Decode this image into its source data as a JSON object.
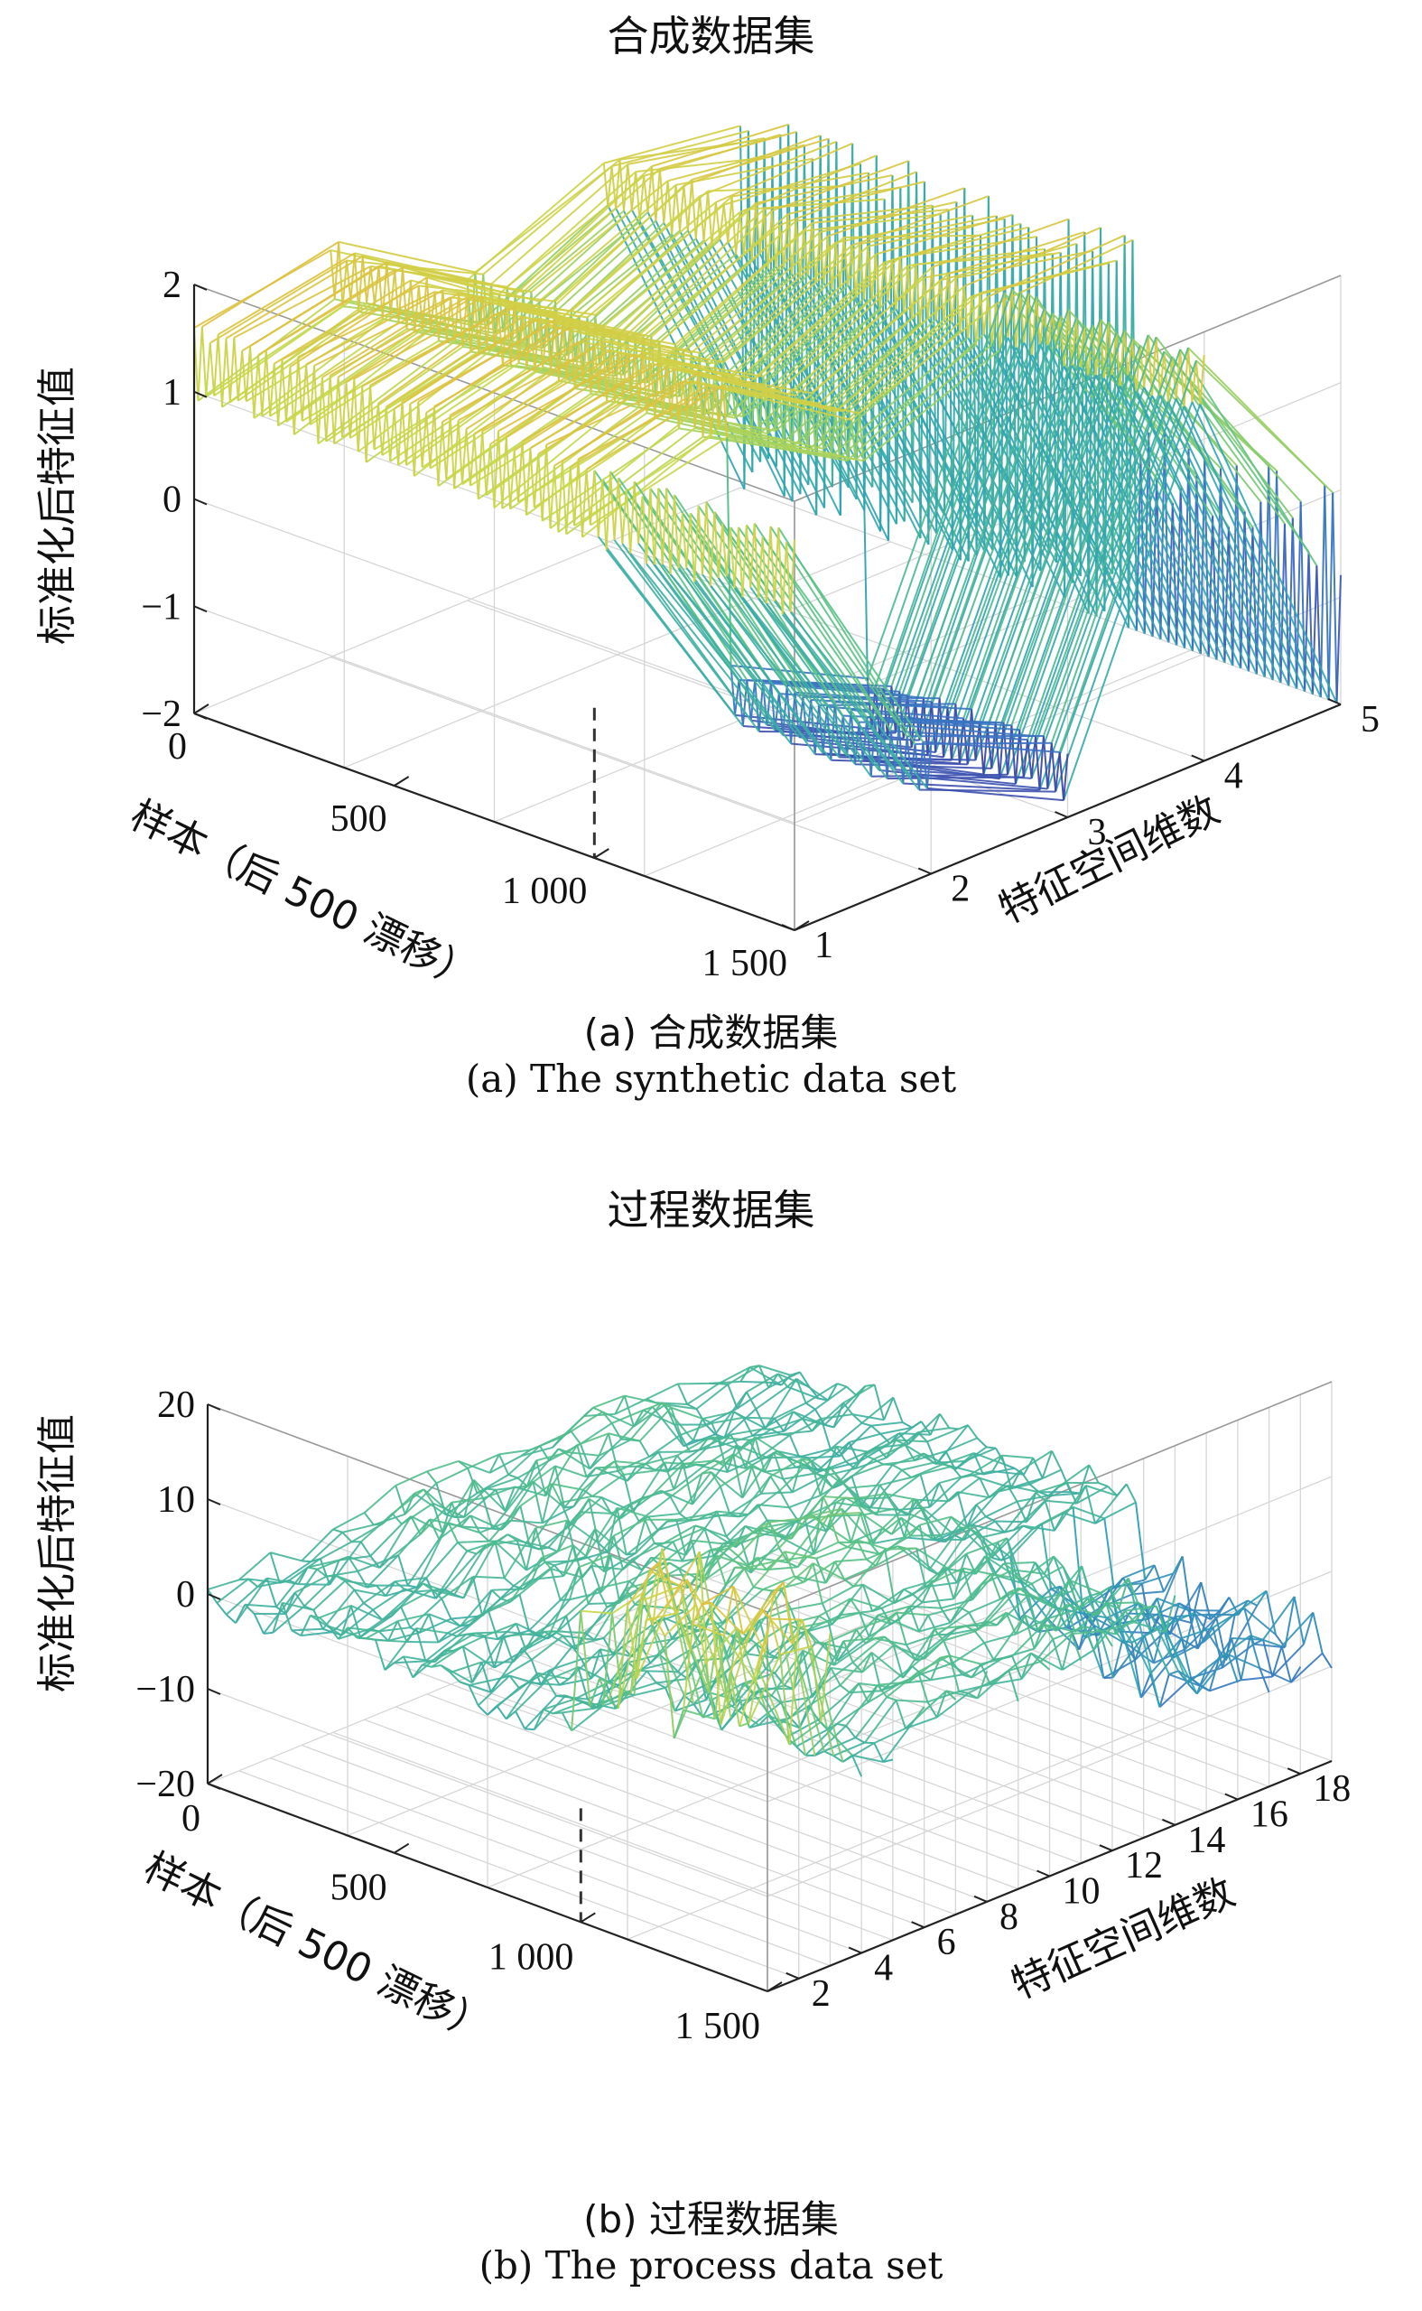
{
  "panels": [
    {
      "title": "合成数据集",
      "caption_zh": "(a) 合成数据集",
      "caption_en": "(a) The synthetic data set"
    },
    {
      "title": "过程数据集",
      "caption_zh": "(b) 过程数据集",
      "caption_en": "(b) The process data set"
    }
  ],
  "chart_data": [
    {
      "type": "surface-3d-mesh",
      "title": "合成数据集",
      "xlabel": "样本（后 500 漂移）",
      "ylabel": "特征空间维数",
      "zlabel": "标准化后特征值",
      "x_ticks": [
        "0",
        "500",
        "1 000",
        "1 500"
      ],
      "y_ticks": [
        "1",
        "2",
        "3",
        "4",
        "5"
      ],
      "z_ticks": [
        "−2",
        "−1",
        "0",
        "1",
        "2"
      ],
      "xlim": [
        0,
        1500
      ],
      "ylim": [
        1,
        5
      ],
      "zlim": [
        -2,
        2
      ],
      "drift_start_sample": 1000,
      "colormap": [
        "#3b2b8f",
        "#3d69c4",
        "#2ea3b3",
        "#56c187",
        "#c8d84b",
        "#e6b83a"
      ],
      "grid": true,
      "series": [
        {
          "feature": 1,
          "mean_before": 1.3,
          "mean_after": 1.3,
          "amplitude": 0.4
        },
        {
          "feature": 2,
          "mean_before": 1.6,
          "mean_after": -1.0,
          "amplitude": 0.3
        },
        {
          "feature": 3,
          "mean_before": 0.8,
          "mean_after": -1.6,
          "amplitude": 0.3
        },
        {
          "feature": 4,
          "mean_before": 1.4,
          "mean_after": 1.5,
          "amplitude": 0.3
        },
        {
          "feature": 5,
          "mean_before": -0.2,
          "mean_after": -1.6,
          "amplitude": 1.6
        }
      ]
    },
    {
      "type": "surface-3d-mesh",
      "title": "过程数据集",
      "xlabel": "样本（后 500 漂移）",
      "ylabel": "特征空间维数",
      "zlabel": "标准化后特征值",
      "x_ticks": [
        "0",
        "500",
        "1 000",
        "1 500"
      ],
      "y_ticks": [
        "2",
        "4",
        "6",
        "8",
        "10",
        "12",
        "14",
        "16",
        "18"
      ],
      "z_ticks": [
        "−20",
        "−10",
        "0",
        "10",
        "20"
      ],
      "xlim": [
        0,
        1500
      ],
      "ylim": [
        1,
        19
      ],
      "zlim": [
        -20,
        20
      ],
      "drift_start_sample": 1000,
      "colormap": [
        "#3b2b8f",
        "#3d69c4",
        "#2ea3b3",
        "#56c187",
        "#c8d84b",
        "#e6b83a"
      ],
      "grid": true,
      "series": [
        {
          "feature": 2,
          "peak_after_drift": 20
        },
        {
          "feature": 10,
          "peak_before_drift": 6
        },
        {
          "feature": 18,
          "min_after_drift": -10
        }
      ]
    }
  ]
}
